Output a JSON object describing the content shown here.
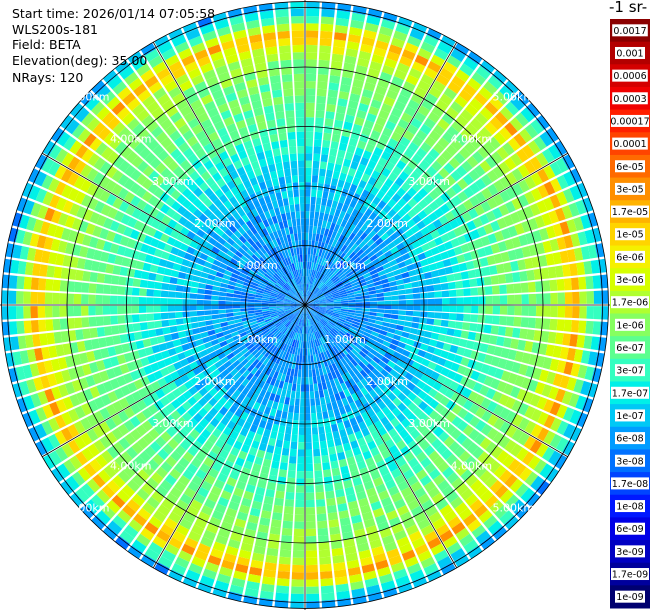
{
  "info": {
    "start_time": "Start time: 2026/01/14 07:05:58",
    "instrument": "WLS200s-181",
    "field": "Field: BETA",
    "elevation": "Elevation(deg): 35.00",
    "nrays": "NRays: 120"
  },
  "colorbar": {
    "title": "-1 sr-",
    "labels": [
      "0.0017",
      "0.001",
      "0.0006",
      "0.0003",
      "0.00017",
      "0.0001",
      "6e-05",
      "3e-05",
      "1.7e-05",
      "1e-05",
      "6e-06",
      "3e-06",
      "1.7e-06",
      "1e-06",
      "6e-07",
      "3e-07",
      "1.7e-07",
      "1e-07",
      "6e-08",
      "3e-08",
      "1.7e-08",
      "1e-08",
      "6e-09",
      "3e-09",
      "1.7e-09",
      "1e-09"
    ],
    "colors": [
      "#8b0000",
      "#b30000",
      "#d40000",
      "#f00000",
      "#ff2000",
      "#ff4400",
      "#ff6a00",
      "#ff8f00",
      "#ffb300",
      "#ffd400",
      "#f5f000",
      "#d6ff00",
      "#b0ff30",
      "#86ff60",
      "#5cff8f",
      "#34ffc0",
      "#00f0e8",
      "#00c8f5",
      "#009cff",
      "#0070ff",
      "#0044ff",
      "#0018ff",
      "#0000e6",
      "#0000c2",
      "#00009c",
      "#000070"
    ]
  },
  "chart_data": {
    "type": "heatmap",
    "projection": "polar-ppi",
    "field": "BETA",
    "elevation_deg": 35.0,
    "n_rays": 120,
    "range_rings_km": [
      1,
      2,
      3,
      4,
      5
    ],
    "ring_labels": [
      "1.00km",
      "2.00km",
      "3.00km",
      "4.00km",
      "5.00km"
    ],
    "max_range_km": 5.1,
    "colorbar_log_range": [
      1e-09,
      0.0017
    ],
    "radial_profile": [
      {
        "range_km": 0.5,
        "value": 5e-08
      },
      {
        "range_km": 1.0,
        "value": 5e-08
      },
      {
        "range_km": 2.0,
        "value": 1e-07
      },
      {
        "range_km": 3.0,
        "value": 4e-07
      },
      {
        "range_km": 4.0,
        "value": 1e-06
      },
      {
        "range_km": 4.3,
        "value": 2e-06
      },
      {
        "range_km": 4.55,
        "value": 1.5e-05
      },
      {
        "range_km": 4.8,
        "value": 5e-07
      },
      {
        "range_km": 5.1,
        "value": 5e-08
      }
    ]
  }
}
